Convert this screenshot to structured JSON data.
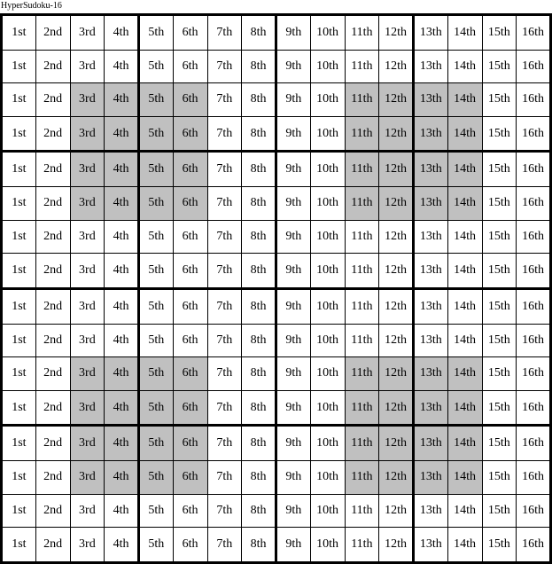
{
  "title": "HyperSudoku-16",
  "colors": {
    "shaded": "#c0c0c0",
    "line": "#000000",
    "text": "#000000",
    "background": "#ffffff"
  },
  "grid": {
    "rows": 16,
    "cols": 16,
    "block_size": 4,
    "col_labels": [
      "1st",
      "2nd",
      "3rd",
      "4th",
      "5th",
      "6th",
      "7th",
      "8th",
      "9th",
      "10th",
      "11th",
      "12th",
      "13th",
      "14th",
      "15th",
      "16th"
    ],
    "shaded_rows": [
      3,
      4,
      5,
      6,
      11,
      12,
      13,
      14
    ],
    "shaded_cols": [
      3,
      4,
      5,
      6,
      11,
      12,
      13,
      14
    ]
  }
}
